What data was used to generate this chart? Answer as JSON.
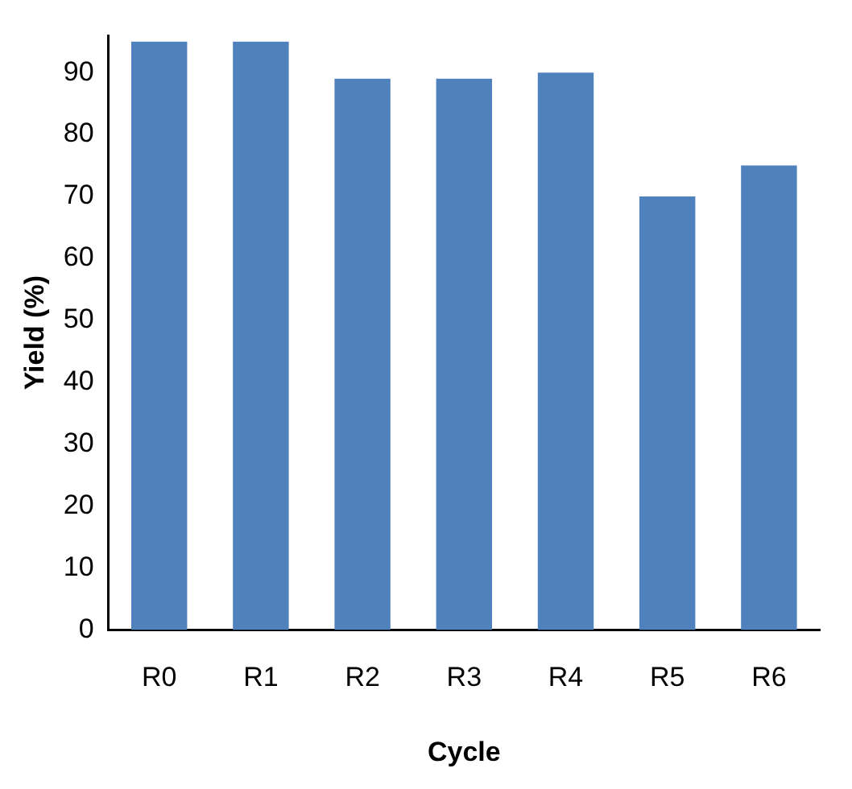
{
  "chart_data": {
    "type": "bar",
    "xlabel": "Cycle",
    "ylabel": "Yield (%)",
    "categories": [
      "R0",
      "R1",
      "R2",
      "R3",
      "R4",
      "R5",
      "R6"
    ],
    "values": [
      95,
      95,
      89,
      89,
      90,
      70,
      75
    ],
    "color": "#4f81bd",
    "ylim": [
      0,
      96
    ],
    "yticks": [
      0,
      10,
      20,
      30,
      40,
      50,
      60,
      70,
      80,
      90
    ],
    "grid": false,
    "legend": false
  }
}
